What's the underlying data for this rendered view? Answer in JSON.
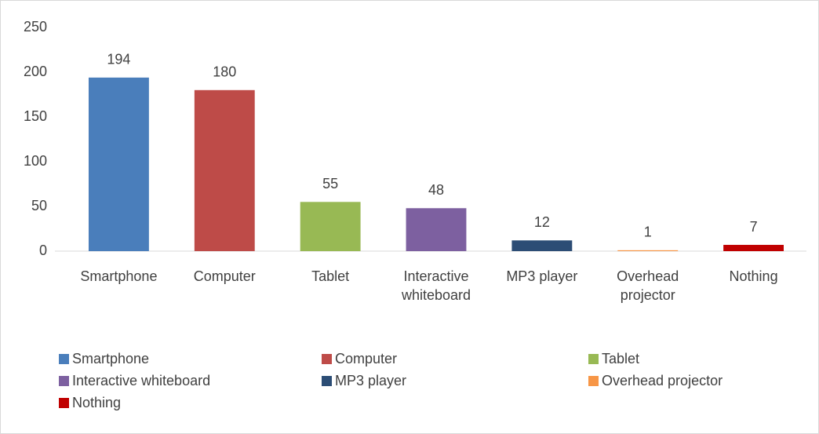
{
  "chart_data": {
    "type": "bar",
    "categories": [
      "Smartphone",
      "Computer",
      "Tablet",
      "Interactive whiteboard",
      "MP3 player",
      "Overhead projector",
      "Nothing"
    ],
    "values": [
      194,
      180,
      55,
      48,
      12,
      1,
      7
    ],
    "colors": [
      "#4a7ebb",
      "#be4b48",
      "#98b954",
      "#7d60a0",
      "#2c4d75",
      "#f79646",
      "#c00000"
    ],
    "ylim": [
      0,
      250
    ],
    "yticks": [
      0,
      50,
      100,
      150,
      200,
      250
    ],
    "grid": false,
    "legend": "bottom"
  }
}
